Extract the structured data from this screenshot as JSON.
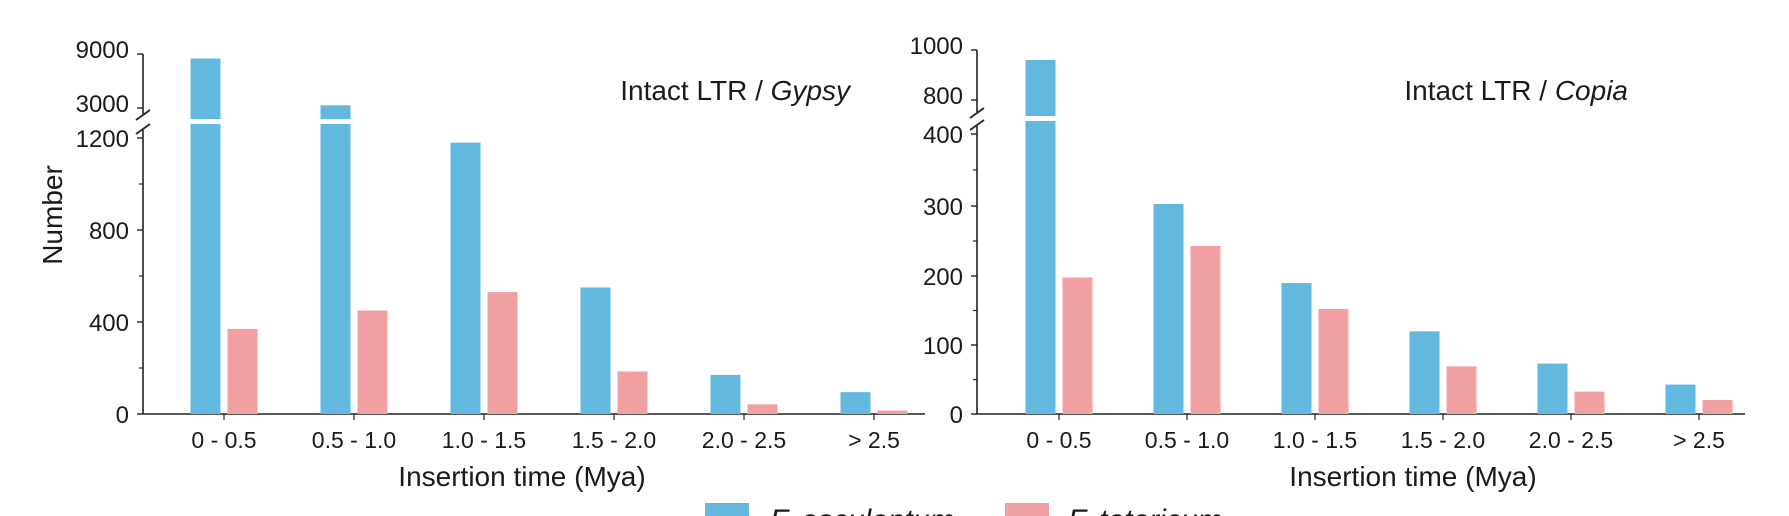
{
  "shared": {
    "ylabel": "Number",
    "xlabel": "Insertion time (Mya)",
    "categories": [
      "0 - 0.5",
      "0.5 - 1.0",
      "1.0 - 1.5",
      "1.5 - 2.0",
      "2.0 - 2.5",
      "> 2.5"
    ]
  },
  "legend": [
    {
      "name": "F. esculentum",
      "color": "#62b8de"
    },
    {
      "name": "F. tataricum",
      "color": "#f0a0a0"
    }
  ],
  "chart_data": [
    {
      "type": "bar",
      "title_prefix": "Intact LTR / ",
      "title_italic": "Gypsy",
      "xlabel": "Insertion time (Mya)",
      "ylabel": "Number",
      "categories": [
        "0 - 0.5",
        "0.5 - 1.0",
        "1.0 - 1.5",
        "1.5 - 2.0",
        "2.0 - 2.5",
        "> 2.5"
      ],
      "series": [
        {
          "name": "F. esculentum",
          "values": [
            8500,
            3300,
            1180,
            550,
            170,
            95
          ]
        },
        {
          "name": "F. tataricum",
          "values": [
            370,
            450,
            530,
            185,
            42,
            15
          ]
        }
      ],
      "broken_axis": {
        "lower_range": [
          0,
          1200
        ],
        "upper_range": [
          3000,
          9000
        ]
      },
      "yticks_lower": [
        "0",
        "400",
        "800",
        "1200"
      ],
      "yticks_upper": [
        "3000",
        "9000"
      ],
      "grid": false,
      "legend_position": "bottom"
    },
    {
      "type": "bar",
      "title_prefix": "Intact LTR / ",
      "title_italic": "Copia",
      "xlabel": "Insertion time (Mya)",
      "ylabel": "",
      "categories": [
        "0 - 0.5",
        "0.5 - 1.0",
        "1.0 - 1.5",
        "1.5 - 2.0",
        "2.0 - 2.5",
        "> 2.5"
      ],
      "series": [
        {
          "name": "F. esculentum",
          "values": [
            960,
            300,
            187,
            118,
            72,
            42
          ]
        },
        {
          "name": "F. tataricum",
          "values": [
            195,
            240,
            150,
            68,
            32,
            20
          ]
        }
      ],
      "broken_axis": {
        "lower_range": [
          0,
          400
        ],
        "upper_range": [
          800,
          1000
        ]
      },
      "yticks_lower": [
        "0",
        "100",
        "200",
        "300",
        "400"
      ],
      "yticks_upper": [
        "800",
        "1000"
      ],
      "grid": false,
      "legend_position": "bottom"
    }
  ]
}
